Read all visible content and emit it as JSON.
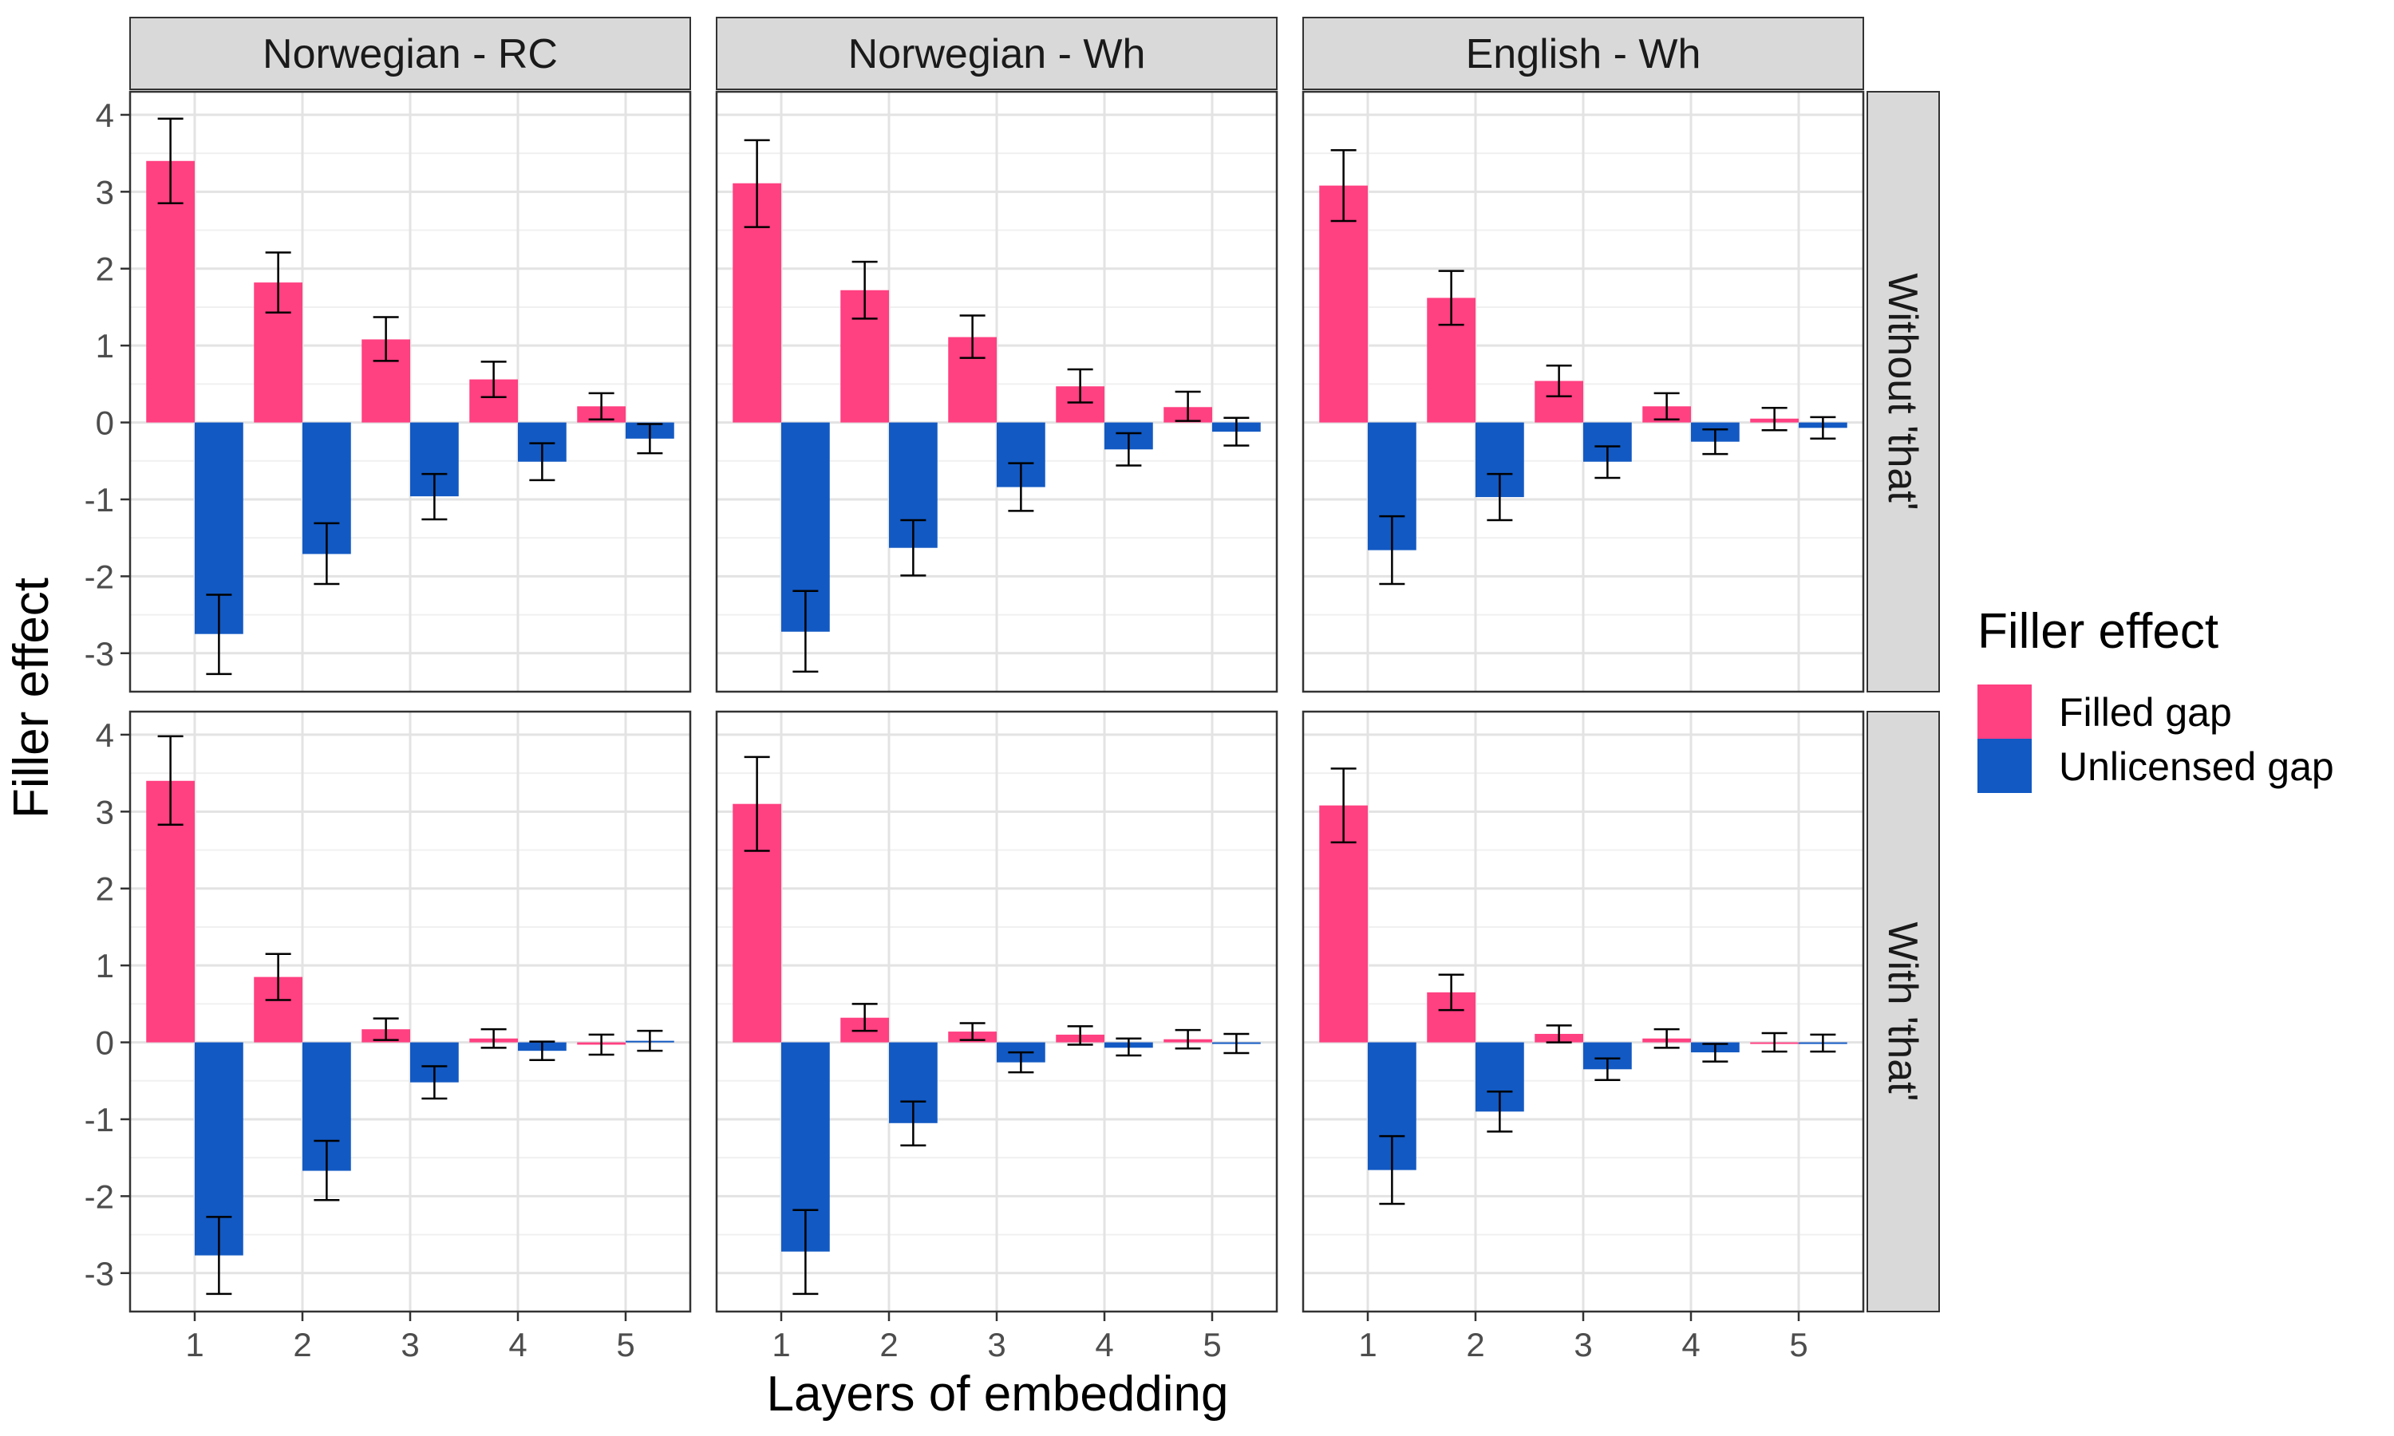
{
  "chart_data": {
    "type": "bar",
    "facet_columns": [
      "Norwegian - RC",
      "Norwegian - Wh",
      "English - Wh"
    ],
    "facet_rows": [
      "Without 'that'",
      "With 'that'"
    ],
    "x": [
      1,
      2,
      3,
      4,
      5
    ],
    "x_tick_labels": [
      "1",
      "2",
      "3",
      "4",
      "5"
    ],
    "xlabel": "Layers of embedding",
    "ylabel": "Filler effect",
    "ylim": [
      -3.5,
      4.3
    ],
    "y_ticks": [
      -3,
      -2,
      -1,
      0,
      1,
      2,
      3,
      4
    ],
    "y_tick_labels": [
      "-3",
      "-2",
      "-1",
      "0",
      "1",
      "2",
      "3",
      "4"
    ],
    "grid": true,
    "legend": {
      "title": "Filler effect",
      "position": "right",
      "entries": [
        {
          "name": "Filled gap",
          "color": "#FF4081"
        },
        {
          "name": "Unlicensed gap",
          "color": "#1259C3"
        }
      ]
    },
    "panels": [
      {
        "column": "Norwegian - RC",
        "row": "Without 'that'",
        "series": [
          {
            "name": "Filled gap",
            "values": [
              3.4,
              1.82,
              1.08,
              0.56,
              0.21
            ],
            "err_low": [
              2.85,
              1.43,
              0.8,
              0.33,
              0.04
            ],
            "err_high": [
              3.95,
              2.21,
              1.37,
              0.79,
              0.38
            ]
          },
          {
            "name": "Unlicensed gap",
            "values": [
              -2.75,
              -1.71,
              -0.96,
              -0.51,
              -0.21
            ],
            "err_low": [
              -3.27,
              -2.1,
              -1.26,
              -0.75,
              -0.4
            ],
            "err_high": [
              -2.24,
              -1.31,
              -0.67,
              -0.27,
              -0.02
            ]
          }
        ]
      },
      {
        "column": "Norwegian - Wh",
        "row": "Without 'that'",
        "series": [
          {
            "name": "Filled gap",
            "values": [
              3.11,
              1.72,
              1.11,
              0.47,
              0.2
            ],
            "err_low": [
              2.54,
              1.35,
              0.84,
              0.26,
              0.02
            ],
            "err_high": [
              3.67,
              2.09,
              1.39,
              0.69,
              0.4
            ]
          },
          {
            "name": "Unlicensed gap",
            "values": [
              -2.72,
              -1.63,
              -0.84,
              -0.35,
              -0.12
            ],
            "err_low": [
              -3.24,
              -1.99,
              -1.15,
              -0.56,
              -0.3
            ],
            "err_high": [
              -2.19,
              -1.27,
              -0.53,
              -0.14,
              0.06
            ]
          }
        ]
      },
      {
        "column": "English - Wh",
        "row": "Without 'that'",
        "series": [
          {
            "name": "Filled gap",
            "values": [
              3.08,
              1.62,
              0.54,
              0.21,
              0.05
            ],
            "err_low": [
              2.62,
              1.27,
              0.34,
              0.04,
              -0.1
            ],
            "err_high": [
              3.54,
              1.97,
              0.74,
              0.38,
              0.19
            ]
          },
          {
            "name": "Unlicensed gap",
            "values": [
              -1.66,
              -0.97,
              -0.51,
              -0.25,
              -0.07
            ],
            "err_low": [
              -2.1,
              -1.27,
              -0.72,
              -0.41,
              -0.21
            ],
            "err_high": [
              -1.22,
              -0.67,
              -0.31,
              -0.09,
              0.07
            ]
          }
        ]
      },
      {
        "column": "Norwegian - RC",
        "row": "With 'that'",
        "series": [
          {
            "name": "Filled gap",
            "values": [
              3.4,
              0.85,
              0.17,
              0.05,
              -0.03
            ],
            "err_low": [
              2.83,
              0.55,
              0.03,
              -0.07,
              -0.16
            ],
            "err_high": [
              3.98,
              1.15,
              0.31,
              0.17,
              0.1
            ]
          },
          {
            "name": "Unlicensed gap",
            "values": [
              -2.77,
              -1.67,
              -0.52,
              -0.11,
              0.02
            ],
            "err_low": [
              -3.27,
              -2.05,
              -0.73,
              -0.23,
              -0.11
            ],
            "err_high": [
              -2.27,
              -1.28,
              -0.31,
              0.01,
              0.15
            ]
          }
        ]
      },
      {
        "column": "Norwegian - Wh",
        "row": "With 'that'",
        "series": [
          {
            "name": "Filled gap",
            "values": [
              3.1,
              0.32,
              0.14,
              0.1,
              0.04
            ],
            "err_low": [
              2.49,
              0.15,
              0.03,
              -0.03,
              -0.08
            ],
            "err_high": [
              3.71,
              0.5,
              0.25,
              0.21,
              0.16
            ]
          },
          {
            "name": "Unlicensed gap",
            "values": [
              -2.72,
              -1.05,
              -0.26,
              -0.07,
              -0.01
            ],
            "err_low": [
              -3.27,
              -1.34,
              -0.39,
              -0.17,
              -0.14
            ],
            "err_high": [
              -2.18,
              -0.77,
              -0.13,
              0.05,
              0.11
            ]
          }
        ]
      },
      {
        "column": "English - Wh",
        "row": "With 'that'",
        "series": [
          {
            "name": "Filled gap",
            "values": [
              3.08,
              0.65,
              0.11,
              0.05,
              0.0
            ],
            "err_low": [
              2.6,
              0.42,
              0.0,
              -0.07,
              -0.12
            ],
            "err_high": [
              3.56,
              0.88,
              0.22,
              0.17,
              0.12
            ]
          },
          {
            "name": "Unlicensed gap",
            "values": [
              -1.66,
              -0.9,
              -0.35,
              -0.13,
              -0.01
            ],
            "err_low": [
              -2.1,
              -1.16,
              -0.49,
              -0.25,
              -0.12
            ],
            "err_high": [
              -1.22,
              -0.64,
              -0.21,
              -0.02,
              0.1
            ]
          }
        ]
      }
    ]
  }
}
